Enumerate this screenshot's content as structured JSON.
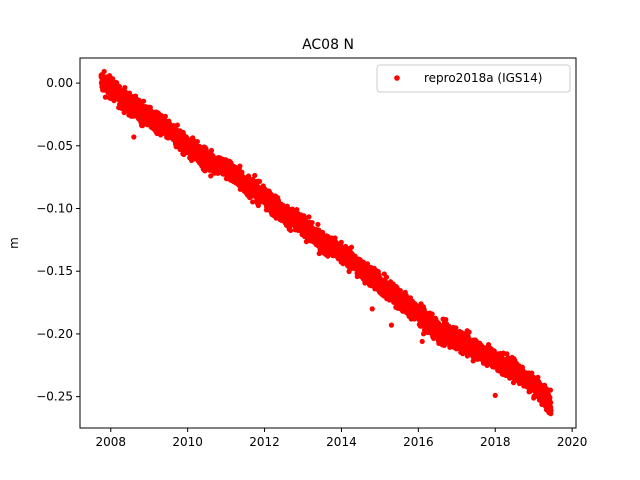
{
  "chart_data": {
    "type": "scatter",
    "title": "AC08 N",
    "xlabel": "",
    "ylabel": "m",
    "xlim": [
      2007.2,
      2020.1
    ],
    "ylim": [
      -0.275,
      0.02
    ],
    "x_ticks": [
      "2008",
      "2010",
      "2012",
      "2014",
      "2016",
      "2018",
      "2020"
    ],
    "y_ticks": [
      "0.00",
      "−0.05",
      "−0.10",
      "−0.15",
      "−0.20",
      "−0.25"
    ],
    "grid": false,
    "legend_position": "top-right",
    "series": [
      {
        "name": "repro2018a (IGS14)",
        "color": "#ff0000",
        "marker": "circle",
        "x_start": 2007.75,
        "x_end": 2019.45,
        "trend_points": [
          [
            2007.75,
            0.002
          ],
          [
            2008.0,
            -0.004
          ],
          [
            2008.5,
            -0.017
          ],
          [
            2009.0,
            -0.028
          ],
          [
            2009.5,
            -0.038
          ],
          [
            2010.0,
            -0.05
          ],
          [
            2010.5,
            -0.061
          ],
          [
            2011.0,
            -0.068
          ],
          [
            2011.5,
            -0.08
          ],
          [
            2012.0,
            -0.091
          ],
          [
            2012.5,
            -0.104
          ],
          [
            2013.0,
            -0.114
          ],
          [
            2013.5,
            -0.127
          ],
          [
            2014.0,
            -0.135
          ],
          [
            2014.5,
            -0.148
          ],
          [
            2015.0,
            -0.16
          ],
          [
            2015.5,
            -0.172
          ],
          [
            2016.0,
            -0.184
          ],
          [
            2016.5,
            -0.198
          ],
          [
            2017.0,
            -0.204
          ],
          [
            2017.5,
            -0.212
          ],
          [
            2018.0,
            -0.221
          ],
          [
            2018.5,
            -0.229
          ],
          [
            2019.0,
            -0.24
          ],
          [
            2019.45,
            -0.255
          ]
        ],
        "noise_amplitude": 0.004,
        "outliers": [
          [
            2008.6,
            -0.043
          ],
          [
            2009.9,
            -0.057
          ],
          [
            2010.6,
            -0.074
          ],
          [
            2011.0,
            -0.063
          ],
          [
            2012.8,
            -0.117
          ],
          [
            2013.3,
            -0.118
          ],
          [
            2014.6,
            -0.156
          ],
          [
            2014.8,
            -0.18
          ],
          [
            2015.3,
            -0.193
          ],
          [
            2016.1,
            -0.206
          ],
          [
            2016.9,
            -0.208
          ],
          [
            2017.6,
            -0.218
          ],
          [
            2018.0,
            -0.249
          ],
          [
            2018.1,
            -0.219
          ],
          [
            2018.9,
            -0.243
          ],
          [
            2019.4,
            -0.262
          ]
        ]
      }
    ]
  }
}
